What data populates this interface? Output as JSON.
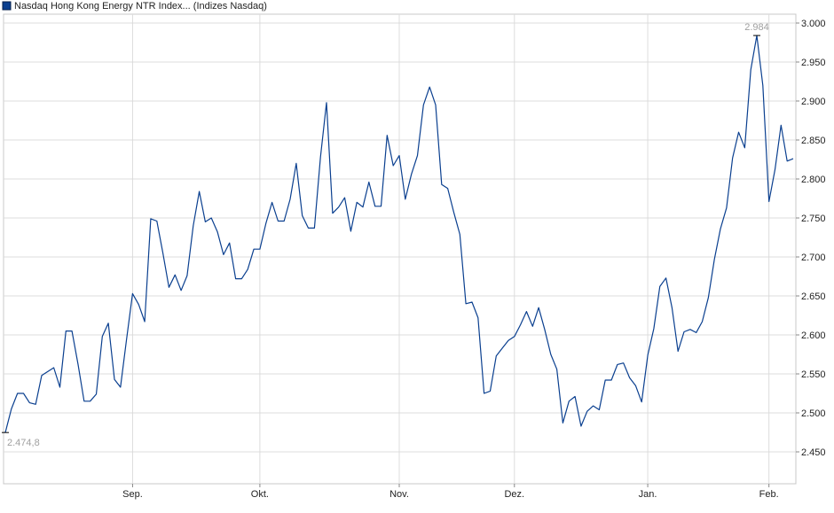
{
  "chart_data": {
    "type": "line",
    "legend": "Nasdaq Hong Kong Energy NTR Index... (Indizes Nasdaq)",
    "title": "",
    "xlabel": "",
    "ylabel": "",
    "ylim": [
      2.43,
      3.01
    ],
    "grid": true,
    "legend_position": "top-left",
    "y_ticks": [
      {
        "value": 2.45,
        "label": "2.450"
      },
      {
        "value": 2.5,
        "label": "2.500"
      },
      {
        "value": 2.55,
        "label": "2.550"
      },
      {
        "value": 2.6,
        "label": "2.600"
      },
      {
        "value": 2.65,
        "label": "2.650"
      },
      {
        "value": 2.7,
        "label": "2.700"
      },
      {
        "value": 2.75,
        "label": "2.750"
      },
      {
        "value": 2.8,
        "label": "2.800"
      },
      {
        "value": 2.85,
        "label": "2.850"
      },
      {
        "value": 2.9,
        "label": "2.900"
      },
      {
        "value": 2.95,
        "label": "2.950"
      },
      {
        "value": 3.0,
        "label": "3.000"
      }
    ],
    "x_ticks": [
      {
        "index": 21,
        "label": "Sep."
      },
      {
        "index": 42,
        "label": "Okt."
      },
      {
        "index": 65,
        "label": "Nov."
      },
      {
        "index": 84,
        "label": "Dez."
      },
      {
        "index": 106,
        "label": "Jan."
      },
      {
        "index": 126,
        "label": "Feb."
      }
    ],
    "annotations": [
      {
        "index": 0,
        "value": 2.4748,
        "label": "2.474,8",
        "type": "min"
      },
      {
        "index": 124,
        "value": 2.984,
        "label": "2.984",
        "type": "max"
      }
    ],
    "series": [
      {
        "name": "Nasdaq Hong Kong Energy NTR Index... (Indizes Nasdaq)",
        "color": "#0a3f8f",
        "values": [
          2.4748,
          2.505,
          2.525,
          2.525,
          2.513,
          2.511,
          2.548,
          2.553,
          2.558,
          2.533,
          2.605,
          2.605,
          2.562,
          2.515,
          2.515,
          2.524,
          2.598,
          2.615,
          2.543,
          2.533,
          2.594,
          2.653,
          2.639,
          2.617,
          2.749,
          2.746,
          2.705,
          2.661,
          2.677,
          2.657,
          2.676,
          2.74,
          2.784,
          2.745,
          2.75,
          2.732,
          2.703,
          2.718,
          2.672,
          2.672,
          2.684,
          2.71,
          2.71,
          2.743,
          2.77,
          2.746,
          2.746,
          2.774,
          2.82,
          2.753,
          2.737,
          2.737,
          2.828,
          2.898,
          2.756,
          2.764,
          2.776,
          2.733,
          2.77,
          2.764,
          2.796,
          2.765,
          2.765,
          2.856,
          2.817,
          2.83,
          2.774,
          2.806,
          2.83,
          2.895,
          2.918,
          2.895,
          2.793,
          2.788,
          2.757,
          2.729,
          2.64,
          2.642,
          2.622,
          2.525,
          2.528,
          2.573,
          2.583,
          2.593,
          2.598,
          2.613,
          2.63,
          2.611,
          2.635,
          2.607,
          2.575,
          2.556,
          2.487,
          2.515,
          2.521,
          2.483,
          2.502,
          2.509,
          2.504,
          2.542,
          2.542,
          2.562,
          2.564,
          2.545,
          2.535,
          2.514,
          2.574,
          2.608,
          2.662,
          2.673,
          2.635,
          2.579,
          2.604,
          2.607,
          2.603,
          2.617,
          2.648,
          2.697,
          2.736,
          2.763,
          2.827,
          2.86,
          2.84,
          2.94,
          2.984,
          2.92,
          2.771,
          2.812,
          2.869,
          2.823,
          2.826
        ]
      }
    ]
  }
}
